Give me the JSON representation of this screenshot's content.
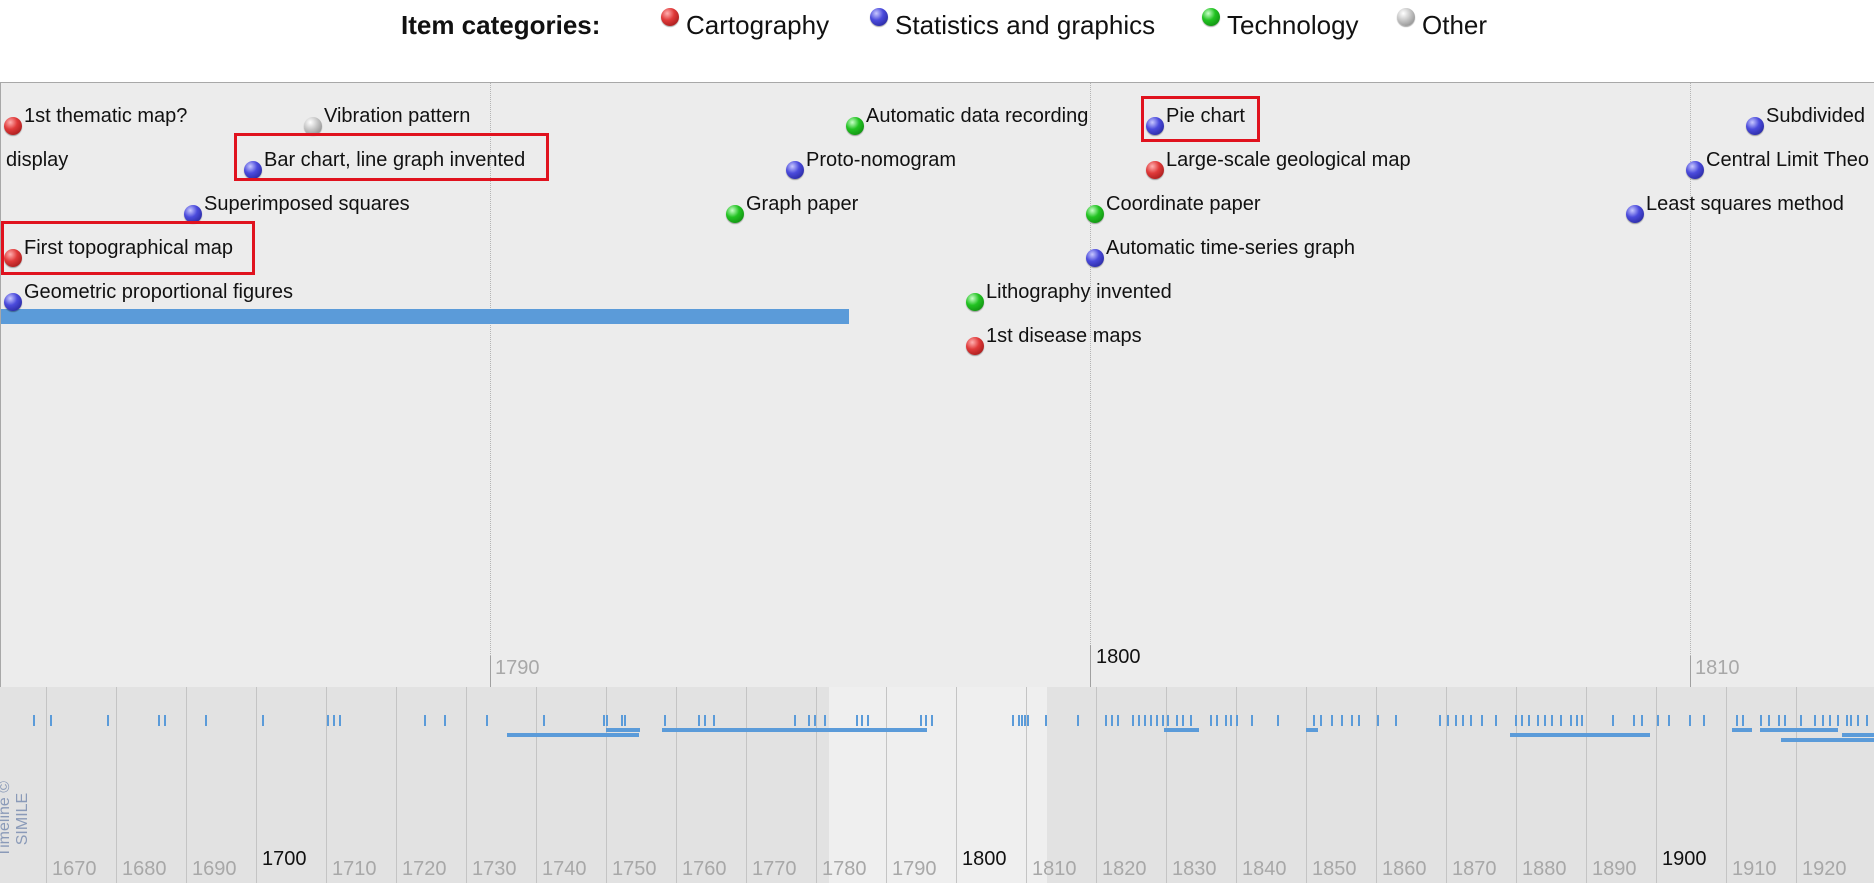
{
  "legend": {
    "title": "Item categories:",
    "items": [
      {
        "label": "Cartography",
        "color": "red"
      },
      {
        "label": "Statistics and graphics",
        "color": "blue"
      },
      {
        "label": "Technology",
        "color": "green"
      },
      {
        "label": "Other",
        "color": "grey"
      }
    ]
  },
  "events": {
    "e1": "1st thematic map?",
    "e2": "display",
    "e3": "Vibration pattern",
    "e4": "Bar chart, line graph invented",
    "e5": "Superimposed squares",
    "e6": "First topographical map",
    "e7": "Geometric proportional figures",
    "e8": "Automatic data recording",
    "e9": "Proto-nomogram",
    "e10": "Graph paper",
    "e11": "Lithography invented",
    "e12": "1st disease maps",
    "e13": "Pie chart",
    "e14": "Large-scale geological map",
    "e15": "Coordinate paper",
    "e16": "Automatic time-series graph",
    "e17": "Subdivided",
    "e18": "Central Limit Theo",
    "e19": "Least squares method"
  },
  "main_axis": {
    "l1790": "1790",
    "l1800": "1800",
    "l1810": "1810"
  },
  "overview_axis": {
    "labels": [
      "1670",
      "1680",
      "1690",
      "1700",
      "1710",
      "1720",
      "1730",
      "1740",
      "1750",
      "1760",
      "1770",
      "1780",
      "1790",
      "1800",
      "1810",
      "1820",
      "1830",
      "1840",
      "1850",
      "1860",
      "1870",
      "1880",
      "1890",
      "1900",
      "1910",
      "1920"
    ]
  },
  "credit": "Timeline © SIMILE"
}
